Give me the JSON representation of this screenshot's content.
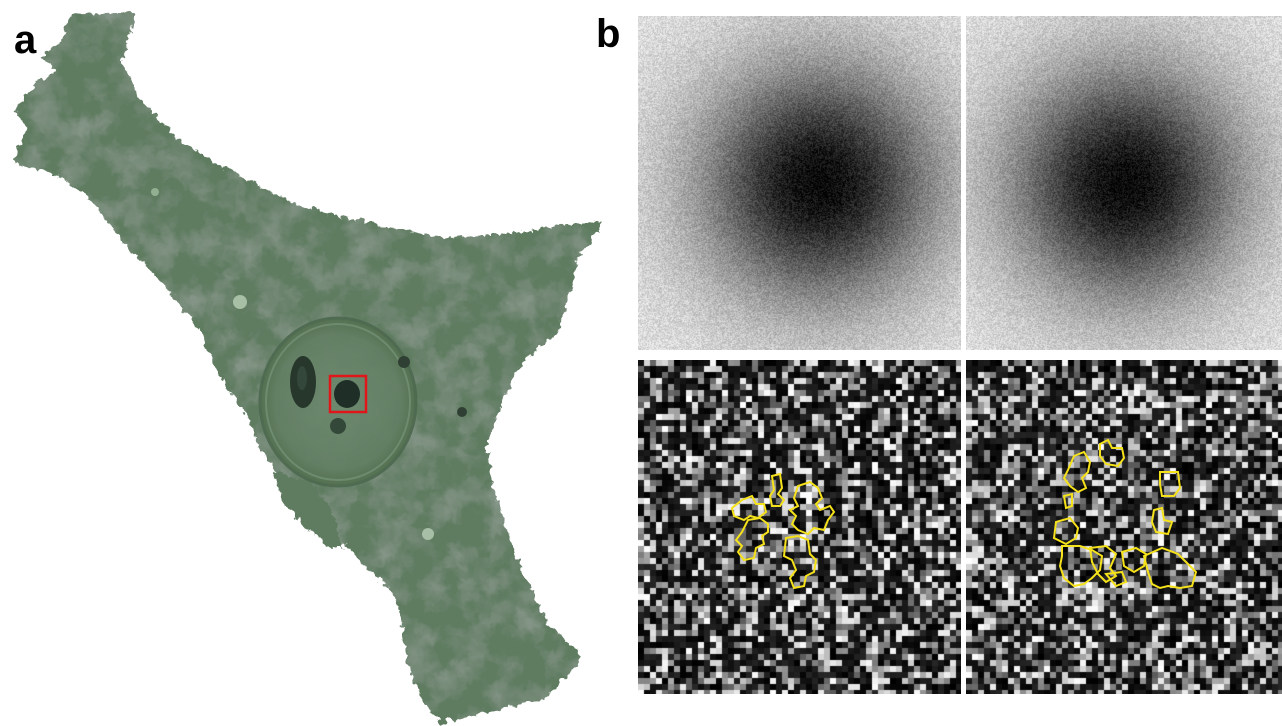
{
  "panels": {
    "a": {
      "label": "a"
    },
    "b": {
      "label": "b"
    }
  },
  "colors": {
    "cell_body": "#5f7c61",
    "cell_dark": "#3a4d3d",
    "roi_box": "#e0161b",
    "contour": "#f5e21a",
    "background": "#ffffff"
  },
  "tiles": [
    {
      "name": "psf-image-1",
      "kind": "blurred-spot"
    },
    {
      "name": "psf-image-2",
      "kind": "blurred-spot"
    },
    {
      "name": "noise-map-1",
      "kind": "noise-with-contours"
    },
    {
      "name": "noise-map-2",
      "kind": "noise-with-contours"
    }
  ]
}
